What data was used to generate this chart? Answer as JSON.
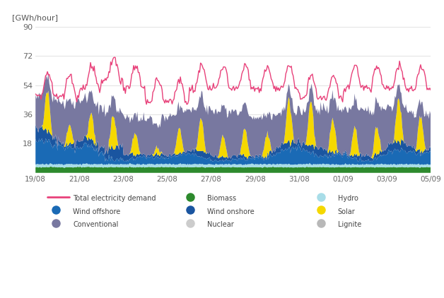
{
  "title": "[GWh/hour]",
  "ylim": [
    0,
    90
  ],
  "yticks": [
    0,
    18,
    36,
    54,
    72,
    90
  ],
  "xtick_labels": [
    "19/08",
    "21/08",
    "23/08",
    "25/08",
    "27/08",
    "29/08",
    "31/08",
    "01/09",
    "03/09",
    "05/09"
  ],
  "background_color": "#ffffff",
  "grid_color": "#dddddd",
  "colors": {
    "biomass": "#2d8a2d",
    "hydro": "#a8dde8",
    "wind_offshore": "#1a6ab5",
    "wind_onshore": "#1a55a0",
    "solar": "#f5d800",
    "conventional": "#7878a0",
    "nuclear": "#cccccc",
    "lignite": "#b8b8b8",
    "demand": "#e8417a"
  },
  "n_points": 432
}
